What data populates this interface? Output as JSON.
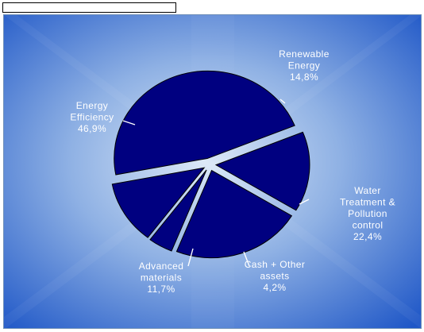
{
  "chart_data": {
    "type": "pie",
    "slices": [
      {
        "label_lines": [
          "Renewable",
          "Energy"
        ],
        "value": 14.8,
        "value_text": "14,8%"
      },
      {
        "label_lines": [
          "Water",
          "Treatment &",
          "Pollution",
          "control"
        ],
        "value": 22.4,
        "value_text": "22,4%"
      },
      {
        "label_lines": [
          "Cash + Other",
          "assets"
        ],
        "value": 4.2,
        "value_text": "4,2%"
      },
      {
        "label_lines": [
          "Advanced",
          "materials"
        ],
        "value": 11.7,
        "value_text": "11,7%"
      },
      {
        "label_lines": [
          "Energy",
          "Efficiency"
        ],
        "value": 46.9,
        "value_text": "46,9%"
      }
    ],
    "colors": {
      "slice_fill": "#000080",
      "background_outer": "#1f57c7",
      "background_center": "#d8e6f6",
      "label_text": "#ffffff"
    },
    "legend": "none"
  }
}
